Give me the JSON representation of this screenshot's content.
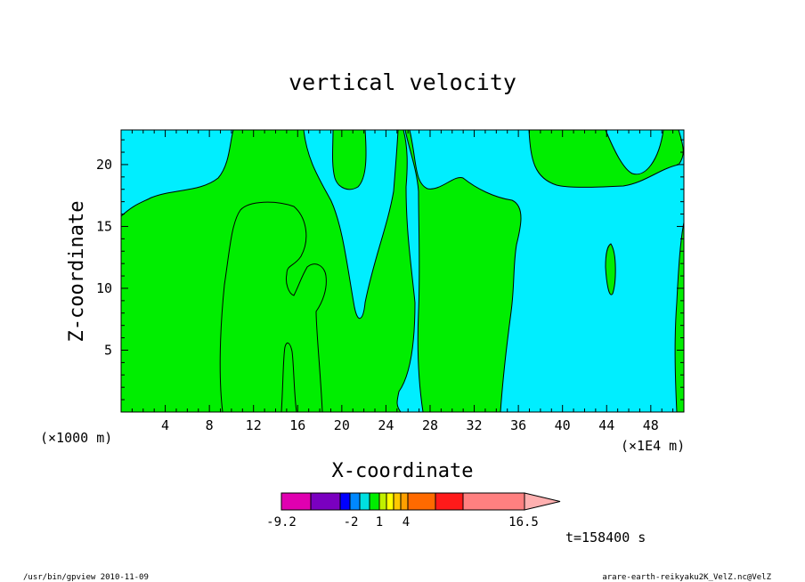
{
  "chart_data": {
    "type": "heatmap",
    "title": "vertical velocity",
    "xlabel": "X-coordinate",
    "ylabel": "Z-coordinate",
    "x_unit_left": "(×1000 m)",
    "x_unit_right": "(×1E4 m)",
    "xlim": [
      0,
      51
    ],
    "ylim": [
      0,
      22.8
    ],
    "x_ticks": [
      "4",
      "8",
      "12",
      "16",
      "20",
      "24",
      "28",
      "32",
      "36",
      "40",
      "44",
      "48"
    ],
    "y_ticks": [
      "5",
      "10",
      "15",
      "20"
    ],
    "background_color": "#00eeff",
    "contour_fill_color": "#00ee00",
    "colorbar": {
      "labels": [
        "-9.2",
        "-2",
        "1",
        "4",
        "16.5"
      ],
      "colors": [
        "#e000b0",
        "#7a00c0",
        "#0000ff",
        "#0088ff",
        "#00e0e0",
        "#00ee00",
        "#c0f000",
        "#ffff00",
        "#ffc800",
        "#ffa000",
        "#ff6a00",
        "#ff1a1a",
        "#ff8080"
      ],
      "arrow_color": "#ffb0b0"
    },
    "time_label": "t=158400 s",
    "footer_left": "/usr/bin/gpview   2010-11-09",
    "footer_right": "arare-earth-reikyaku2K_VelZ.nc@VelZ"
  }
}
